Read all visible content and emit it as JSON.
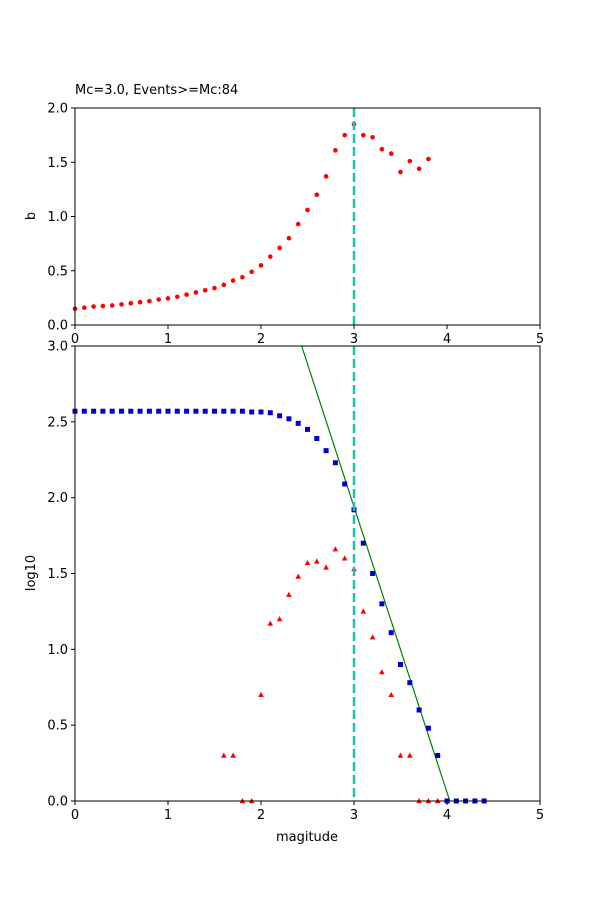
{
  "chart_data": [
    {
      "type": "scatter",
      "title": "Mc=3.0, Events>=Mc:84",
      "xlabel": "",
      "ylabel": "b",
      "xlim": [
        0,
        5
      ],
      "ylim": [
        0,
        2.0
      ],
      "xticks": [
        "0",
        "1",
        "2",
        "3",
        "4",
        "5"
      ],
      "yticks": [
        "0.0",
        "0.5",
        "1.0",
        "1.5",
        "2.0"
      ],
      "mc_line_x": 3.0,
      "colors": {
        "points": "#ff0000",
        "mc_line": "#1ac3b5"
      },
      "series": [
        {
          "marker": "circle",
          "x": [
            0.0,
            0.1,
            0.2,
            0.3,
            0.4,
            0.5,
            0.6,
            0.7,
            0.8,
            0.9,
            1.0,
            1.1,
            1.2,
            1.3,
            1.4,
            1.5,
            1.6,
            1.7,
            1.8,
            1.9,
            2.0,
            2.1,
            2.2,
            2.3,
            2.4,
            2.5,
            2.6,
            2.7,
            2.8,
            2.9,
            3.0,
            3.1,
            3.2,
            3.3,
            3.4,
            3.5,
            3.6,
            3.7,
            3.8
          ],
          "y": [
            0.15,
            0.16,
            0.17,
            0.175,
            0.18,
            0.19,
            0.2,
            0.21,
            0.22,
            0.235,
            0.245,
            0.26,
            0.28,
            0.3,
            0.32,
            0.34,
            0.37,
            0.41,
            0.44,
            0.49,
            0.55,
            0.63,
            0.71,
            0.8,
            0.93,
            1.06,
            1.2,
            1.37,
            1.61,
            1.75,
            1.85,
            1.75,
            1.73,
            1.62,
            1.58,
            1.41,
            1.51,
            1.44,
            1.53
          ]
        }
      ]
    },
    {
      "type": "scatter",
      "title": "",
      "xlabel": "magitude",
      "ylabel": "log10",
      "xlim": [
        0,
        5
      ],
      "ylim": [
        0,
        3.0
      ],
      "xticks": [
        "0",
        "1",
        "2",
        "3",
        "4",
        "5"
      ],
      "yticks": [
        "0.0",
        "0.5",
        "1.0",
        "1.5",
        "2.0",
        "2.5",
        "3.0"
      ],
      "mc_line_x": 3.0,
      "fit_line": {
        "x1": 2.4,
        "y1": 3.07,
        "x2": 4.03,
        "y2": 0.0,
        "color": "#008000"
      },
      "colors": {
        "cumulative": "#0000cc",
        "noncumulative": "#ff0000",
        "mc_line": "#1ac3b5"
      },
      "series": [
        {
          "marker": "square",
          "x": [
            0.0,
            0.1,
            0.2,
            0.3,
            0.4,
            0.5,
            0.6,
            0.7,
            0.8,
            0.9,
            1.0,
            1.1,
            1.2,
            1.3,
            1.4,
            1.5,
            1.6,
            1.7,
            1.8,
            1.9,
            2.0,
            2.1,
            2.2,
            2.3,
            2.4,
            2.5,
            2.6,
            2.7,
            2.8,
            2.9,
            3.0,
            3.1,
            3.2,
            3.3,
            3.4,
            3.5,
            3.6,
            3.7,
            3.8,
            3.9,
            4.0,
            4.1,
            4.2,
            4.3,
            4.4
          ],
          "y": [
            2.57,
            2.57,
            2.57,
            2.57,
            2.57,
            2.57,
            2.57,
            2.57,
            2.57,
            2.57,
            2.57,
            2.57,
            2.57,
            2.57,
            2.57,
            2.57,
            2.57,
            2.57,
            2.57,
            2.565,
            2.565,
            2.56,
            2.54,
            2.52,
            2.49,
            2.45,
            2.39,
            2.31,
            2.23,
            2.09,
            1.92,
            1.7,
            1.5,
            1.3,
            1.11,
            0.9,
            0.78,
            0.6,
            0.48,
            0.3,
            0.0,
            0.0,
            0.0,
            0.0,
            0.0
          ]
        },
        {
          "marker": "triangle",
          "x": [
            1.6,
            1.7,
            1.8,
            1.9,
            2.0,
            2.1,
            2.2,
            2.3,
            2.4,
            2.5,
            2.6,
            2.7,
            2.8,
            2.9,
            3.0,
            3.1,
            3.2,
            3.3,
            3.4,
            3.5,
            3.6,
            3.7,
            3.8,
            3.9
          ],
          "y": [
            0.3,
            0.3,
            0.0,
            0.0,
            0.7,
            1.17,
            1.2,
            1.36,
            1.48,
            1.57,
            1.58,
            1.54,
            1.66,
            1.6,
            1.53,
            1.25,
            1.08,
            0.85,
            0.7,
            0.3,
            0.3,
            0.0,
            0.0,
            0.0
          ]
        }
      ]
    }
  ]
}
